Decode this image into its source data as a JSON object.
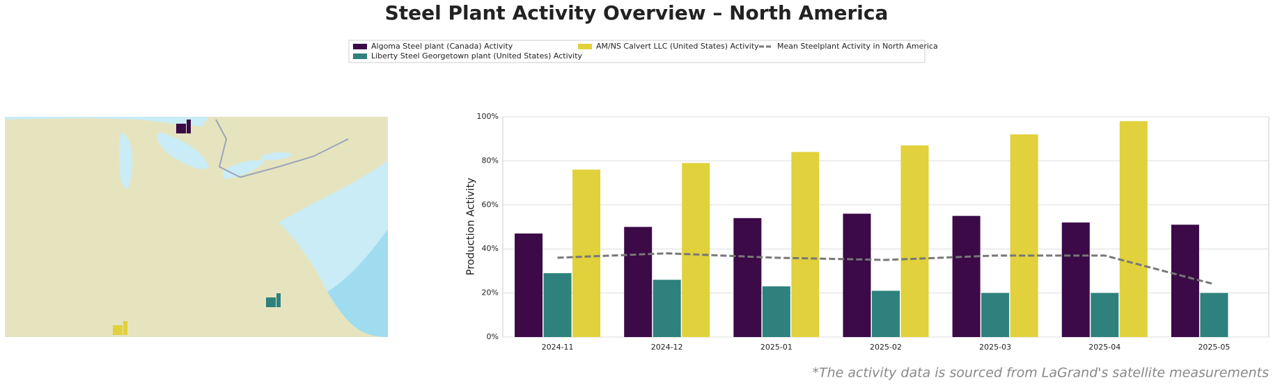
{
  "chart_data": {
    "type": "bar",
    "title": "Steel Plant Activity Overview – North America",
    "y_label": "Production Activity",
    "footnote": "*The activity data is sourced from LaGrand's satellite measurements",
    "categories": [
      "2024-11",
      "2024-12",
      "2025-01",
      "2025-02",
      "2025-03",
      "2025-04",
      "2025-05"
    ],
    "series": [
      {
        "name": "Algoma Steel plant (Canada) Activity",
        "color": "#3b0a47",
        "type": "bar",
        "values": [
          47,
          50,
          54,
          56,
          55,
          52,
          51
        ]
      },
      {
        "name": "Liberty Steel Georgetown plant (United States) Activity",
        "color": "#2e817c",
        "type": "bar",
        "values": [
          29,
          26,
          23,
          21,
          20,
          20,
          20
        ]
      },
      {
        "name": "AM/NS Calvert LLC (United States) Activity",
        "color": "#e1d13c",
        "type": "bar",
        "values": [
          76,
          79,
          84,
          87,
          92,
          98,
          null
        ]
      },
      {
        "name": "Mean Steelplant Activity in North America",
        "color": "#777777",
        "type": "line",
        "line_style": "dashed",
        "values": [
          36,
          38,
          36,
          35,
          37,
          37,
          24
        ]
      }
    ],
    "ylim": [
      0,
      100
    ],
    "yticks": [
      {
        "value": 0,
        "label": "0%"
      },
      {
        "value": 20,
        "label": "20%"
      },
      {
        "value": 40,
        "label": "40%"
      },
      {
        "value": 60,
        "label": "60%"
      },
      {
        "value": 80,
        "label": "80%"
      },
      {
        "value": 100,
        "label": "100%"
      }
    ],
    "grid": true
  }
}
